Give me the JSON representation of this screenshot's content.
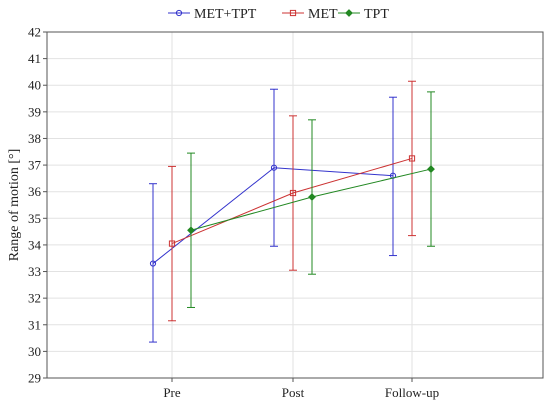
{
  "chart_data": {
    "type": "line",
    "ylabel": "Range of motion [°]",
    "categories": [
      "Pre",
      "Post",
      "Follow-up"
    ],
    "ylim": [
      29,
      42
    ],
    "yticks": [
      29,
      30,
      31,
      32,
      33,
      34,
      35,
      36,
      37,
      38,
      39,
      40,
      41,
      42
    ],
    "grid": true,
    "legend_position": "top",
    "series": [
      {
        "name": "MET+TPT",
        "color": "#3333cc",
        "marker": "circle",
        "values": [
          33.3,
          36.9,
          36.6
        ],
        "lower": [
          30.35,
          33.95,
          33.6
        ],
        "upper": [
          36.3,
          39.85,
          39.55
        ]
      },
      {
        "name": "MET",
        "color": "#cc3333",
        "marker": "square",
        "values": [
          34.05,
          35.95,
          37.25
        ],
        "lower": [
          31.15,
          33.05,
          34.35
        ],
        "upper": [
          36.95,
          38.85,
          40.15
        ]
      },
      {
        "name": "TPT",
        "color": "#228822",
        "marker": "diamond",
        "values": [
          34.55,
          35.8,
          36.85
        ],
        "lower": [
          31.65,
          32.9,
          33.95
        ],
        "upper": [
          37.45,
          38.7,
          39.75
        ]
      }
    ]
  }
}
